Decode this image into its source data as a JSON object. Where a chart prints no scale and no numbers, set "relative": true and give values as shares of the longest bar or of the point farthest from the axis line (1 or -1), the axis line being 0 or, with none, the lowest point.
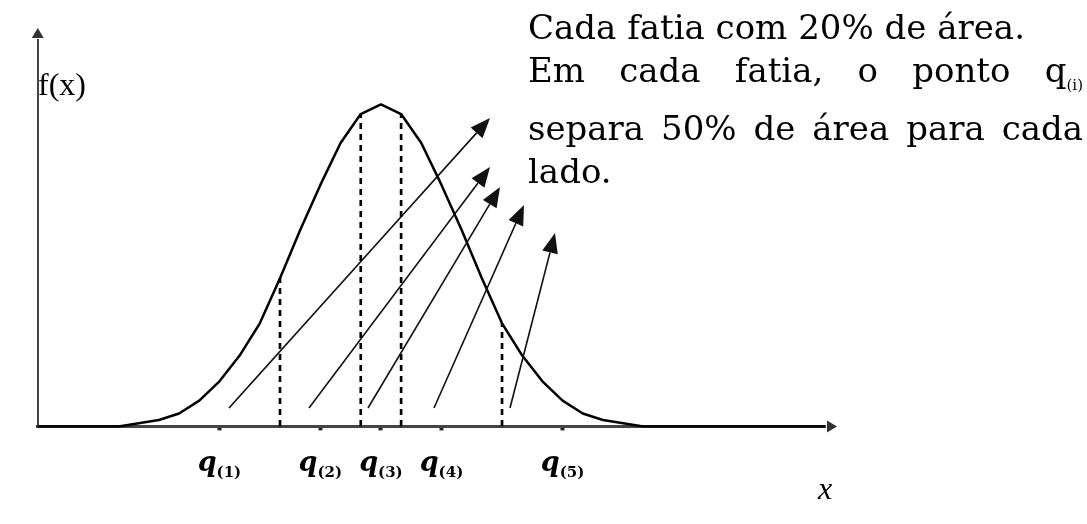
{
  "chart_data": {
    "type": "line",
    "relative": true,
    "xlabel": "x",
    "ylabel": "f(x)",
    "categories": [
      null,
      null,
      null,
      null,
      null,
      null,
      null,
      null,
      null,
      "q$_{(1)}$",
      null,
      null,
      null,
      null,
      "q$_{(2)}$",
      null,
      null,
      "q$_{(3)}$",
      null,
      null,
      "q$_{(4)}$",
      null,
      null,
      null,
      null,
      null,
      "q$_{(5)}$",
      null,
      null,
      null,
      null,
      null,
      null,
      null,
      null,
      null,
      null,
      null,
      null,
      null
    ],
    "grid": false,
    "legend": false,
    "marker": "none",
    "series": [
      {
        "color": "#000000",
        "line_style": "solid",
        "values": [
          0,
          0,
          0,
          0,
          0,
          0.01,
          0.02,
          0.04,
          0.08,
          0.14,
          0.22,
          0.32,
          0.46,
          0.61,
          0.75,
          0.88,
          0.97,
          1,
          0.97,
          0.88,
          0.75,
          0.61,
          0.46,
          0.32,
          0.22,
          0.14,
          0.08,
          0.04,
          0.02,
          0.01,
          0,
          0,
          0,
          0,
          0,
          0,
          0,
          0,
          0,
          0
        ]
      },
      {
        "type": "bar",
        "color": "#000000",
        "line_style": "dashed",
        "values": [
          null,
          null,
          null,
          null,
          null,
          null,
          null,
          null,
          null,
          null,
          null,
          null,
          0.46,
          null,
          null,
          null,
          0.97,
          null,
          0.97,
          null,
          null,
          null,
          null,
          0.32,
          null,
          null,
          null,
          null,
          null,
          null,
          null,
          null,
          null,
          null,
          null,
          null,
          null,
          null,
          null,
          null
        ]
      }
    ],
    "annotations": [
      "Cada fatia com 20% de área.",
      "Em cada fatia, o ponto q$_{(i)}$ separa 50% de área para cada lado."
    ]
  }
}
